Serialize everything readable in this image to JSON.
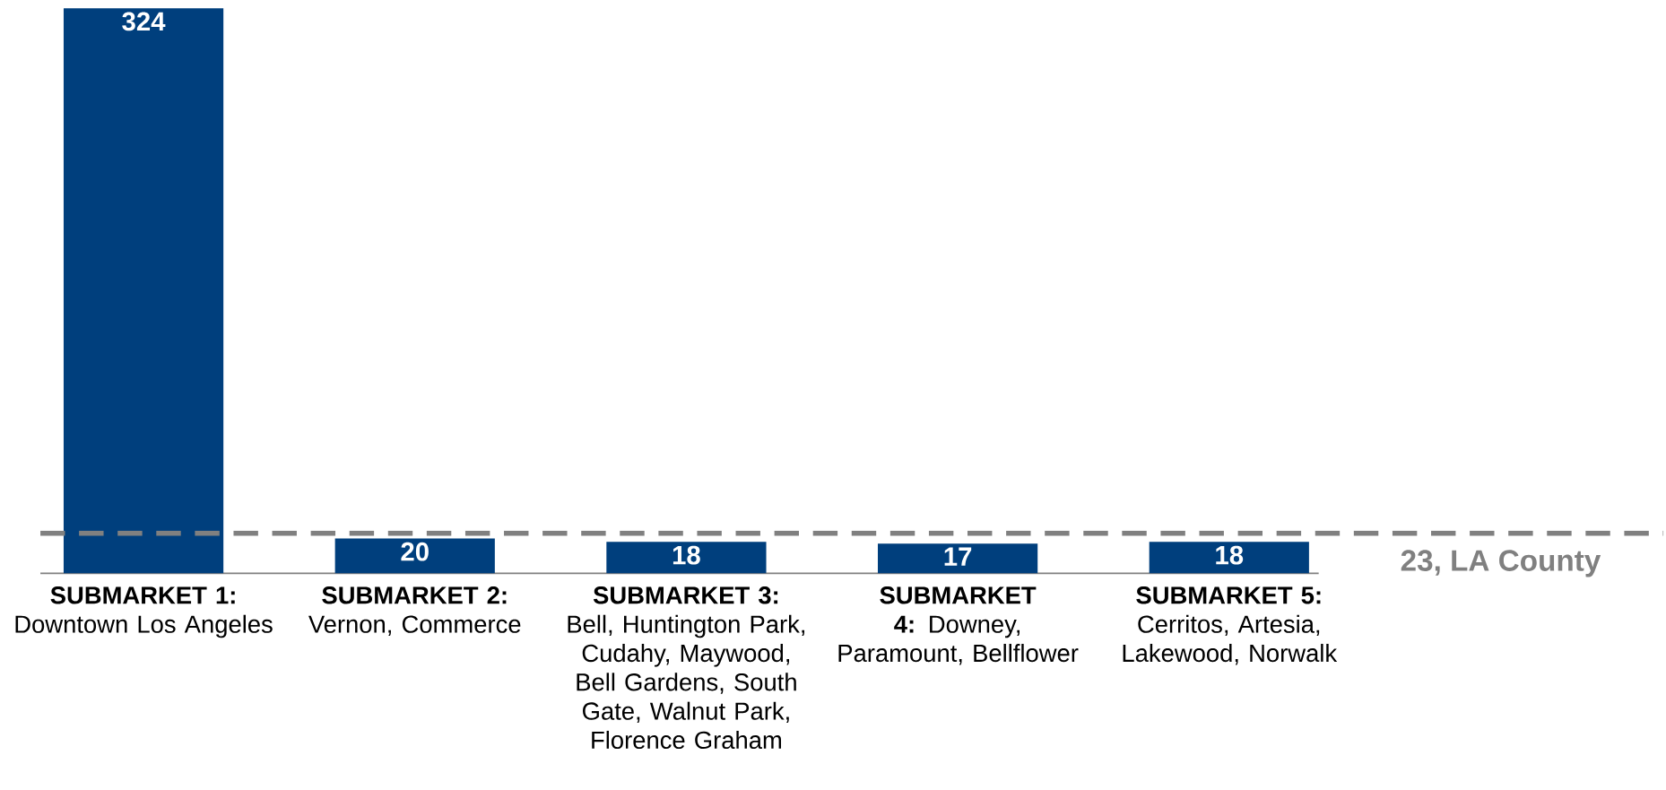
{
  "chart_data": {
    "type": "bar",
    "categories": [
      "**SUBMARKET 1:** Downtown Los Angeles",
      "**SUBMARKET 2:** Vernon, Commerce",
      "**SUBMARKET 3:** Bell, Huntington Park, Cudahy, Maywood, Bell Gardens, South Gate, Walnut Park, Florence Graham",
      "**SUBMARKET 4:** Downey, Paramount, Bellflower",
      "**SUBMARKET 5:** Cerritos, Artesia, Lakewood, Norwalk"
    ],
    "values": [
      324,
      20,
      18,
      17,
      18
    ],
    "color": "#003f7d",
    "data_labels": true,
    "ref_lines": [
      {
        "axis": "y",
        "value": 23,
        "label": "23, LA County",
        "color": "#808080",
        "line_style": "dashed"
      }
    ]
  }
}
